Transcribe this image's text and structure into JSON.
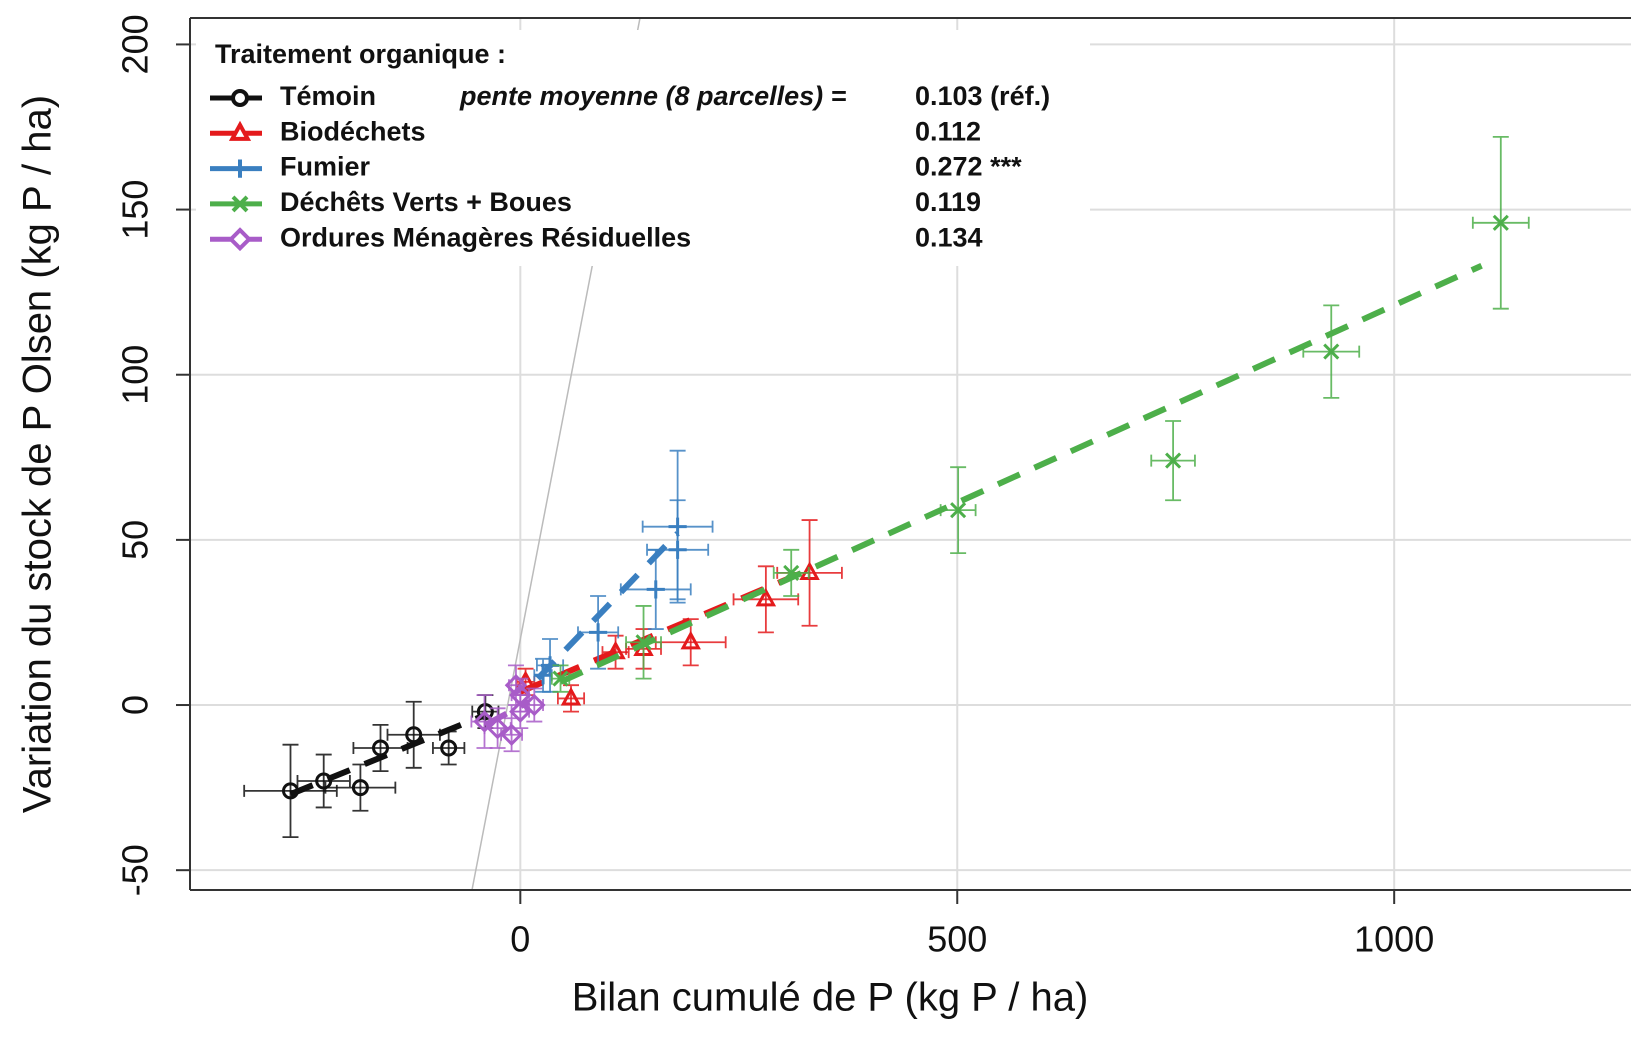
{
  "chart_data": {
    "type": "scatter",
    "xlabel": "Bilan cumulé de P (kg P / ha)",
    "ylabel": "Variation du stock de P Olsen (kg P / ha)",
    "xlim": [
      -378,
      1271
    ],
    "ylim": [
      -56,
      208
    ],
    "xticks": [
      0,
      500,
      1000
    ],
    "yticks": [
      -50,
      0,
      50,
      100,
      150,
      200
    ],
    "grid": true,
    "legend_title": "Traitement organique :",
    "slope_header": "pente moyenne (8 parcelles) =",
    "series": [
      {
        "name": "Témoin",
        "color": "#111111",
        "marker": "circle",
        "slope": {
          "value": 0.103,
          "label": "0.103 (réf.)"
        },
        "x": [
          -263,
          -225,
          -183,
          -160,
          -122,
          -82,
          -40
        ],
        "y": [
          -26,
          -23,
          -25,
          -13,
          -9,
          -13,
          -2
        ],
        "xerr": [
          53,
          30,
          40,
          31,
          30,
          18,
          15
        ],
        "yerr": [
          14,
          8,
          7,
          7,
          10,
          5,
          5
        ],
        "fit_x": [
          -263,
          -40
        ],
        "fit_y": [
          -27,
          -3
        ]
      },
      {
        "name": "Biodéchets",
        "color": "#e41a1c",
        "marker": "triangle",
        "slope": 0.112,
        "x": [
          6,
          58,
          109,
          141,
          195,
          281,
          331
        ],
        "y": [
          7,
          2,
          16,
          17,
          19,
          32,
          40
        ],
        "xerr": [
          10,
          15,
          15,
          20,
          40,
          37,
          37
        ],
        "yerr": [
          4,
          4,
          5,
          6,
          7,
          10,
          16
        ],
        "fit_x": [
          0,
          331
        ],
        "fit_y": [
          4,
          41
        ]
      },
      {
        "name": "Fumier",
        "color": "#3a7fc0",
        "marker": "plus",
        "slope": {
          "value": 0.272,
          "label": "0.272 ***"
        },
        "x": [
          26,
          34,
          89,
          155,
          180,
          180
        ],
        "y": [
          9,
          12,
          22,
          35,
          47,
          54
        ],
        "xerr": [
          10,
          15,
          23,
          40,
          35,
          40
        ],
        "yerr": [
          5,
          8,
          11,
          12,
          15,
          23
        ],
        "fit_x": [
          20,
          180
        ],
        "fit_y": [
          8,
          52
        ]
      },
      {
        "name": "Déchêts Verts + Boues",
        "color": "#4daf4a",
        "marker": "cross",
        "slope": 0.119,
        "x": [
          46,
          141,
          310,
          501,
          747,
          928,
          1122
        ],
        "y": [
          8,
          19,
          40,
          59,
          74,
          107,
          146
        ],
        "xerr": [
          10,
          20,
          20,
          20,
          25,
          32,
          32
        ],
        "yerr": [
          4,
          11,
          7,
          13,
          12,
          14,
          26
        ],
        "fit_x": [
          46,
          1100
        ],
        "fit_y": [
          7,
          133
        ]
      },
      {
        "name": "Ordures Ménagères Résiduelles",
        "color": "#a85cc8",
        "marker": "diamond",
        "slope": 0.134,
        "x": [
          -41,
          -26,
          -10,
          -5,
          0,
          0,
          16
        ],
        "y": [
          -5,
          -7,
          -9,
          6,
          -2,
          3,
          0
        ],
        "xerr": [
          15,
          15,
          12,
          8,
          10,
          10,
          10
        ],
        "yerr": [
          8,
          6,
          5,
          6,
          5,
          5,
          5
        ],
        "fit_x": [
          -40,
          10
        ],
        "fit_y": [
          -6,
          1
        ]
      }
    ]
  }
}
